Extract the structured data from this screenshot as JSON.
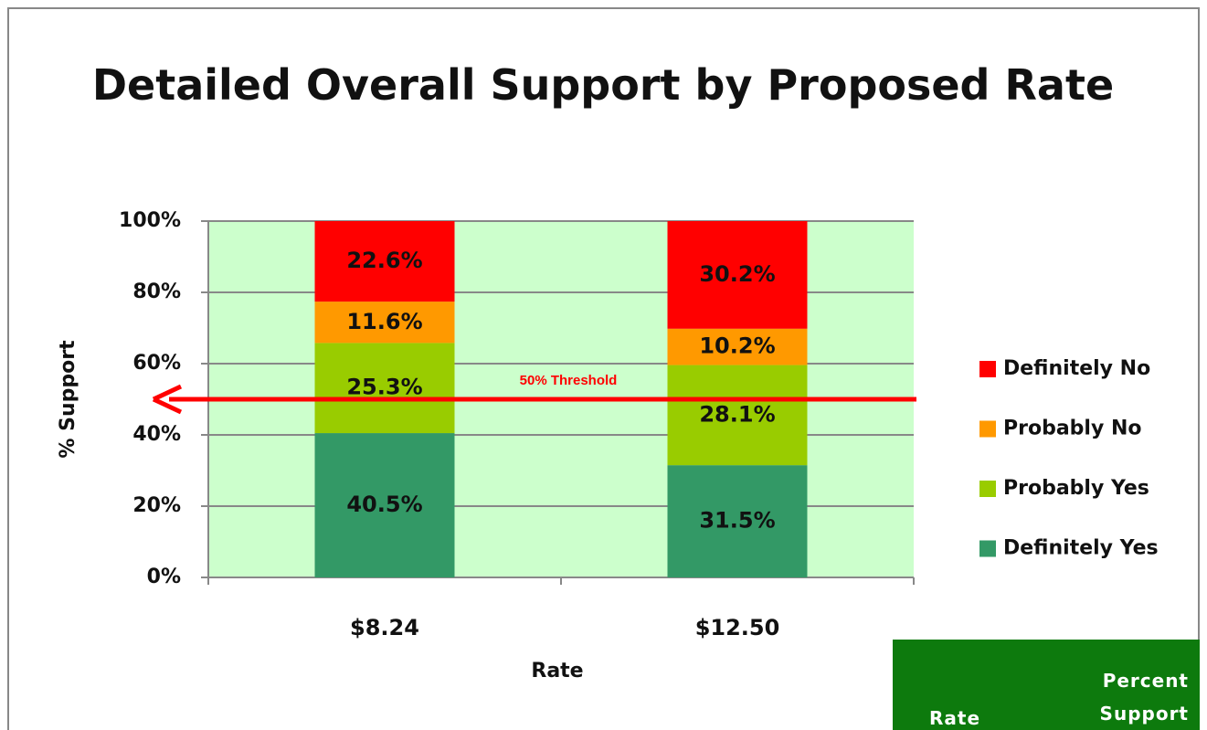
{
  "chart_data": {
    "type": "stacked_bar",
    "title": "Detailed Overall Support by Proposed Rate",
    "x_label": "Rate",
    "y_label": "% Support",
    "categories": [
      "$8.24",
      "$12.50"
    ],
    "series": [
      {
        "name": "Definitely Yes",
        "color": "#339966",
        "values": [
          40.5,
          31.5
        ],
        "value_labels": [
          "40.5%",
          "31.5%"
        ]
      },
      {
        "name": "Probably Yes",
        "color": "#99cc00",
        "values": [
          25.3,
          28.1
        ],
        "value_labels": [
          "25.3%",
          "28.1%"
        ]
      },
      {
        "name": "Probably No",
        "color": "#ff9900",
        "values": [
          11.6,
          10.2
        ],
        "value_labels": [
          "11.6%",
          "10.2%"
        ]
      },
      {
        "name": "Definitely No",
        "color": "#ff0000",
        "values": [
          22.6,
          30.2
        ],
        "value_labels": [
          "22.6%",
          "30.2%"
        ]
      }
    ],
    "ylim": [
      0,
      100
    ],
    "yticks": [
      {
        "value": 0,
        "label": "0%"
      },
      {
        "value": 20,
        "label": "20%"
      },
      {
        "value": 40,
        "label": "40%"
      },
      {
        "value": 60,
        "label": "60%"
      },
      {
        "value": 80,
        "label": "80%"
      },
      {
        "value": 100,
        "label": "100%"
      }
    ],
    "grid": true,
    "legend": "right",
    "threshold": {
      "value": 50,
      "label": "50% Threshold",
      "color": "#ff0000"
    }
  },
  "table": {
    "headers": [
      "Rate",
      "Percent Support"
    ]
  }
}
